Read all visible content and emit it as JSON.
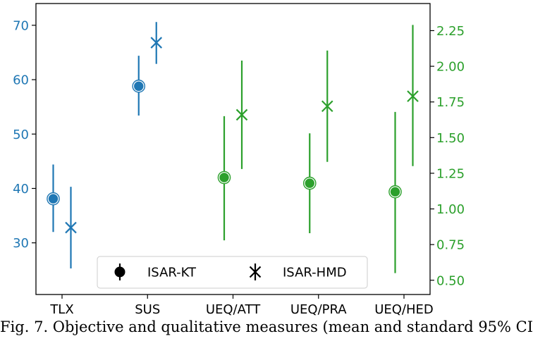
{
  "chart_data": {
    "type": "errorbar",
    "categories": [
      "TLX",
      "SUS",
      "UEQ/ATT",
      "UEQ/PRA",
      "UEQ/HED"
    ],
    "left_axis": {
      "ylim": [
        20.5,
        74.0
      ],
      "ticks": [
        30,
        40,
        50,
        60,
        70
      ],
      "color": "#1f77b4"
    },
    "right_axis": {
      "ylim": [
        0.4,
        2.44
      ],
      "ticks": [
        "0.50",
        "0.75",
        "1.00",
        "1.25",
        "1.50",
        "1.75",
        "2.00",
        "2.25"
      ],
      "color": "#2ca02c"
    },
    "series": [
      {
        "name": "ISAR-KT",
        "marker": "circle",
        "points": [
          {
            "category": "TLX",
            "axis": "left",
            "mean": 38.1,
            "low": 32.0,
            "high": 44.4
          },
          {
            "category": "SUS",
            "axis": "left",
            "mean": 58.8,
            "low": 53.4,
            "high": 64.4
          },
          {
            "category": "UEQ/ATT",
            "axis": "right",
            "mean": 1.22,
            "low": 0.78,
            "high": 1.65
          },
          {
            "category": "UEQ/PRA",
            "axis": "right",
            "mean": 1.18,
            "low": 0.83,
            "high": 1.53
          },
          {
            "category": "UEQ/HED",
            "axis": "right",
            "mean": 1.12,
            "low": 0.55,
            "high": 1.68
          }
        ]
      },
      {
        "name": "ISAR-HMD",
        "marker": "x",
        "points": [
          {
            "category": "TLX",
            "axis": "left",
            "mean": 32.8,
            "low": 25.3,
            "high": 40.3
          },
          {
            "category": "SUS",
            "axis": "left",
            "mean": 66.8,
            "low": 62.9,
            "high": 70.6
          },
          {
            "category": "UEQ/ATT",
            "axis": "right",
            "mean": 1.66,
            "low": 1.28,
            "high": 2.04
          },
          {
            "category": "UEQ/PRA",
            "axis": "right",
            "mean": 1.72,
            "low": 1.33,
            "high": 2.11
          },
          {
            "category": "UEQ/HED",
            "axis": "right",
            "mean": 1.79,
            "low": 1.3,
            "high": 2.29
          }
        ]
      }
    ],
    "legend": {
      "placement": "lower-center",
      "entries": [
        "ISAR-KT",
        "ISAR-HMD"
      ]
    },
    "colors": {
      "left_series": "#1f77b4",
      "right_series": "#2ca02c",
      "frame": "#000000"
    },
    "grid": false
  },
  "caption": "Fig. 7. Objective and qualitative measures (mean and standard 95% CI"
}
